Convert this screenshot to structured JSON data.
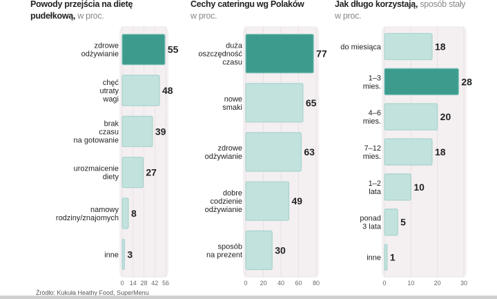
{
  "source": "Źródło: Kukuła Heathy Food, SuperMenu",
  "colors": {
    "highlight": "#3d9b8e",
    "bar": "#c2e2de",
    "bar_border": "#a8d3cd",
    "panel": "#f4eff1"
  },
  "chart_data": [
    {
      "type": "bar",
      "orientation": "horizontal",
      "title_bold": "Powody przejścia na dietę pudełkową,",
      "title_sub": "w proc.",
      "categories": [
        "zdrowe\nodżywianie",
        "chęć\nutraty\nwagi",
        "brak\nczasu\nna gotowanie",
        "urozmaicenie\ndiety",
        "namowy\nrodziny/znajomych",
        "inne"
      ],
      "values": [
        55,
        48,
        39,
        27,
        8,
        3
      ],
      "highlight": [
        0
      ],
      "xlim": [
        0,
        56
      ],
      "ticks": [
        "0",
        "14",
        "28",
        "42",
        "56"
      ],
      "tickvals": [
        0,
        14,
        28,
        42,
        56
      ]
    },
    {
      "type": "bar",
      "orientation": "horizontal",
      "title_bold": "Cechy cateringu wg Polaków",
      "title_sub": "w proc.",
      "categories": [
        "duża\noszczędność\nczasu",
        "nowe\nsmaki",
        "zdrowe\nodżywianie",
        "dobre\ncodzienie\nodżywianie",
        "sposób\nna prezent"
      ],
      "values": [
        77,
        65,
        63,
        49,
        30
      ],
      "highlight": [
        0
      ],
      "xlim": [
        0,
        80
      ],
      "ticks": [
        "0",
        "20",
        "40",
        "60",
        "80"
      ],
      "tickvals": [
        0,
        20,
        40,
        60,
        80
      ]
    },
    {
      "type": "bar",
      "orientation": "horizontal",
      "title_bold": "Jak długo korzystają,",
      "title_sub": "sposób stały w proc.",
      "categories": [
        "do miesiąca",
        "1–3\nmies.",
        "4–6\nmies.",
        "7–12\nmies.",
        "1–2\nlata",
        "ponad\n3 lata",
        "inne"
      ],
      "values": [
        18,
        28,
        20,
        18,
        10,
        5,
        1
      ],
      "highlight": [
        1
      ],
      "xlim": [
        0,
        30
      ],
      "ticks": [
        "0",
        "10",
        "20",
        "30"
      ],
      "tickvals": [
        0,
        10,
        20,
        30
      ]
    }
  ]
}
